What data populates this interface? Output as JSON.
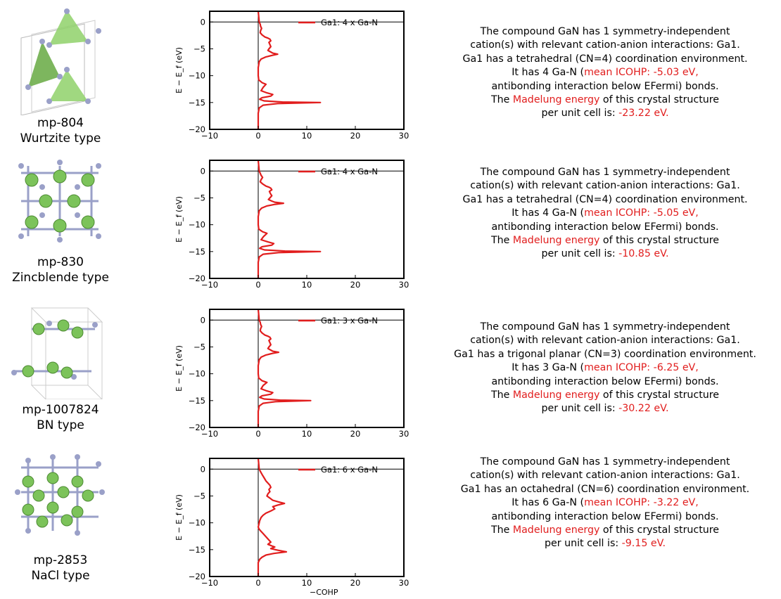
{
  "colors": {
    "series": "#e11d1d",
    "atom_ga": "#7cc35a",
    "atom_n": "#9aa0c8",
    "poly": "#8fd16a"
  },
  "x_axis_label": "−COHP",
  "rows": [
    {
      "id": "mp-804",
      "type": "Wurtzite type",
      "desc": {
        "l1": "The compound GaN has 1 symmetry-independent",
        "l2": "cation(s) with relevant cation-anion interactions: Ga1.",
        "l3": "Ga1 has a tetrahedral (CN=4) coordination environment.",
        "l4a": "It has 4 Ga-N (",
        "l4b": "mean ICOHP: -5.03 eV,",
        "l5": "antibonding interaction below EFermi) bonds.",
        "l6a": "The ",
        "l6b": "Madelung energy",
        "l6c": " of this crystal structure",
        "l7a": "per unit cell is: ",
        "l7b": "-23.22 eV."
      }
    },
    {
      "id": "mp-830",
      "type": "Zincblende type",
      "desc": {
        "l1": "The compound GaN has 1 symmetry-independent",
        "l2": "cation(s) with relevant cation-anion interactions: Ga1.",
        "l3": "Ga1 has a tetrahedral (CN=4) coordination environment.",
        "l4a": "It has 4 Ga-N (",
        "l4b": "mean ICOHP: -5.05 eV,",
        "l5": "antibonding interaction below EFermi) bonds.",
        "l6a": "The ",
        "l6b": "Madelung energy",
        "l6c": " of this crystal structure",
        "l7a": "per unit cell is: ",
        "l7b": "-10.85 eV."
      }
    },
    {
      "id": "mp-1007824",
      "type": "BN type",
      "desc": {
        "l1": "The compound GaN has 1 symmetry-independent",
        "l2": "cation(s) with relevant cation-anion interactions: Ga1.",
        "l3": "Ga1 has a trigonal planar (CN=3) coordination environment.",
        "l4a": "It has 3 Ga-N (",
        "l4b": "mean ICOHP: -6.25 eV,",
        "l5": "antibonding  interaction below EFermi) bonds.",
        "l6a": "The ",
        "l6b": "Madelung energy",
        "l6c": " of this crystal structure",
        "l7a": "per unit cell is: ",
        "l7b": "-30.22 eV."
      }
    },
    {
      "id": "mp-2853",
      "type": "NaCl type",
      "desc": {
        "l1": "The compound GaN has 1 symmetry-independent",
        "l2": "cation(s) with relevant cation-anion interactions: Ga1.",
        "l3": "Ga1 has an octahedral (CN=6) coordination environment.",
        "l4a": "It has 6 Ga-N (",
        "l4b": "mean ICOHP: -3.22 eV,",
        "l5": "antibonding  interaction below EFermi) bonds.",
        "l6a": "The ",
        "l6b": "Madelung energy",
        "l6c": " of this crystal structure",
        "l7a": "per unit cell is: ",
        "l7b": "-9.15 eV."
      }
    }
  ],
  "chart_data": [
    {
      "type": "line",
      "xlim": [
        -10,
        30
      ],
      "ylim": [
        -20,
        2
      ],
      "xticks": [
        "−10",
        "0",
        "10",
        "20",
        "30"
      ],
      "yticks": [
        "0",
        "−5",
        "−10",
        "−15",
        "−20"
      ],
      "ylabel": "E − E_f (eV)",
      "legend_position": "top-right",
      "series": [
        {
          "name": "Ga1: 4 x Ga-N",
          "x": [
            0.0,
            0.2,
            0.4,
            0.5,
            0.7,
            0.5,
            0.4,
            0.8,
            1.4,
            2.0,
            2.4,
            2.6,
            2.2,
            2.4,
            2.6,
            2.2,
            2.0,
            2.6,
            3.0,
            4.0,
            3.0,
            1.6,
            0.6,
            0.2,
            0.0,
            0.0,
            0.1,
            0.4,
            0.8,
            1.6,
            1.0,
            0.6,
            1.8,
            3.0,
            2.6,
            0.8,
            0.3,
            1.2,
            5.0,
            12.8,
            4.0,
            1.0,
            0.2,
            0.0,
            0.0
          ],
          "y": [
            2.0,
            0.0,
            -0.4,
            -0.8,
            -1.2,
            -1.6,
            -2.0,
            -2.4,
            -2.8,
            -3.0,
            -3.2,
            -3.5,
            -3.8,
            -4.2,
            -4.6,
            -5.0,
            -5.3,
            -5.6,
            -5.8,
            -6.0,
            -6.2,
            -6.5,
            -6.9,
            -7.4,
            -8.5,
            -10.0,
            -10.8,
            -11.0,
            -11.3,
            -11.6,
            -12.2,
            -12.8,
            -13.2,
            -13.5,
            -13.8,
            -14.1,
            -14.4,
            -14.7,
            -14.9,
            -15.0,
            -15.2,
            -15.5,
            -16.0,
            -17.0,
            -20.0
          ]
        }
      ]
    },
    {
      "type": "line",
      "xlim": [
        -10,
        30
      ],
      "ylim": [
        -20,
        2
      ],
      "xticks": [
        "−10",
        "0",
        "10",
        "20",
        "30"
      ],
      "yticks": [
        "0",
        "−5",
        "−10",
        "−15",
        "−20"
      ],
      "ylabel": "E − E_f (eV)",
      "legend_position": "top-right",
      "series": [
        {
          "name": "Ga1: 4 x Ga-N",
          "x": [
            0.0,
            0.2,
            0.4,
            0.6,
            0.9,
            0.6,
            0.4,
            0.9,
            1.6,
            2.2,
            2.6,
            2.8,
            2.3,
            2.5,
            2.8,
            2.4,
            2.1,
            2.8,
            3.4,
            5.2,
            3.5,
            1.8,
            0.7,
            0.2,
            0.0,
            0.0,
            0.1,
            0.4,
            0.9,
            1.8,
            1.1,
            0.6,
            2.0,
            3.2,
            2.8,
            0.8,
            0.3,
            1.3,
            5.5,
            12.8,
            4.2,
            1.0,
            0.2,
            0.0,
            0.0
          ],
          "y": [
            2.0,
            0.0,
            -0.4,
            -0.8,
            -1.2,
            -1.6,
            -2.0,
            -2.4,
            -2.8,
            -3.0,
            -3.2,
            -3.5,
            -3.8,
            -4.2,
            -4.6,
            -5.0,
            -5.3,
            -5.6,
            -5.8,
            -6.0,
            -6.2,
            -6.5,
            -6.9,
            -7.4,
            -8.5,
            -10.0,
            -10.8,
            -11.0,
            -11.3,
            -11.6,
            -12.2,
            -12.8,
            -13.2,
            -13.5,
            -13.8,
            -14.1,
            -14.4,
            -14.7,
            -14.9,
            -15.0,
            -15.2,
            -15.5,
            -16.0,
            -17.0,
            -20.0
          ]
        }
      ]
    },
    {
      "type": "line",
      "xlim": [
        -10,
        30
      ],
      "ylim": [
        -20,
        2
      ],
      "xticks": [
        "−10",
        "0",
        "10",
        "20",
        "30"
      ],
      "yticks": [
        "0",
        "−5",
        "−10",
        "−15",
        "−20"
      ],
      "ylabel": "E − E_f (eV)",
      "legend_position": "top-right",
      "series": [
        {
          "name": "Ga1: 3 x Ga-N",
          "x": [
            0.0,
            0.2,
            0.4,
            0.5,
            0.7,
            0.5,
            0.4,
            0.8,
            1.4,
            2.0,
            2.4,
            2.6,
            2.2,
            2.4,
            2.6,
            2.2,
            2.0,
            2.6,
            3.0,
            4.2,
            3.0,
            1.6,
            0.6,
            0.2,
            0.0,
            0.0,
            0.1,
            0.4,
            0.8,
            1.8,
            1.0,
            0.6,
            1.8,
            3.0,
            2.6,
            0.8,
            0.3,
            1.2,
            4.5,
            10.8,
            3.6,
            1.0,
            0.2,
            0.0,
            0.0
          ],
          "y": [
            2.0,
            0.0,
            -0.4,
            -0.8,
            -1.2,
            -1.6,
            -2.0,
            -2.4,
            -2.8,
            -3.0,
            -3.2,
            -3.5,
            -3.8,
            -4.2,
            -4.6,
            -5.0,
            -5.3,
            -5.6,
            -5.8,
            -6.0,
            -6.2,
            -6.5,
            -6.9,
            -7.4,
            -8.5,
            -10.0,
            -10.8,
            -11.0,
            -11.3,
            -11.6,
            -12.2,
            -12.8,
            -13.2,
            -13.5,
            -13.8,
            -14.1,
            -14.4,
            -14.7,
            -14.9,
            -15.0,
            -15.2,
            -15.5,
            -16.0,
            -17.0,
            -20.0
          ]
        }
      ]
    },
    {
      "type": "line",
      "xlim": [
        -10,
        30
      ],
      "ylim": [
        -20,
        2
      ],
      "xticks": [
        "−10",
        "0",
        "10",
        "20",
        "30"
      ],
      "yticks": [
        "0",
        "−5",
        "−10",
        "−15",
        "−20"
      ],
      "ylabel": "E − E_f (eV)",
      "xlabel": "−COHP",
      "legend_position": "top-right",
      "series": [
        {
          "name": "Ga1: 6 x Ga-N",
          "x": [
            0.0,
            0.2,
            0.5,
            0.8,
            1.2,
            1.6,
            2.0,
            2.4,
            2.6,
            2.2,
            2.4,
            2.0,
            1.8,
            2.4,
            3.0,
            4.2,
            5.4,
            4.0,
            3.0,
            3.4,
            2.6,
            1.6,
            1.0,
            0.6,
            0.3,
            0.1,
            0.0,
            0.2,
            0.6,
            1.0,
            1.4,
            1.8,
            2.2,
            2.6,
            2.0,
            2.8,
            3.4,
            2.6,
            4.0,
            5.8,
            3.2,
            1.6,
            0.8,
            0.3,
            0.0,
            0.0
          ],
          "y": [
            2.0,
            0.0,
            -0.5,
            -1.0,
            -1.6,
            -2.2,
            -2.6,
            -3.0,
            -3.4,
            -3.8,
            -4.2,
            -4.6,
            -5.0,
            -5.4,
            -5.8,
            -6.1,
            -6.4,
            -6.7,
            -7.0,
            -7.4,
            -7.8,
            -8.2,
            -8.6,
            -9.0,
            -9.6,
            -10.4,
            -10.8,
            -11.2,
            -11.6,
            -12.0,
            -12.4,
            -12.8,
            -13.2,
            -13.6,
            -14.0,
            -14.3,
            -14.5,
            -14.8,
            -15.1,
            -15.4,
            -15.7,
            -16.0,
            -16.4,
            -16.8,
            -17.4,
            -20.0
          ]
        }
      ]
    }
  ]
}
